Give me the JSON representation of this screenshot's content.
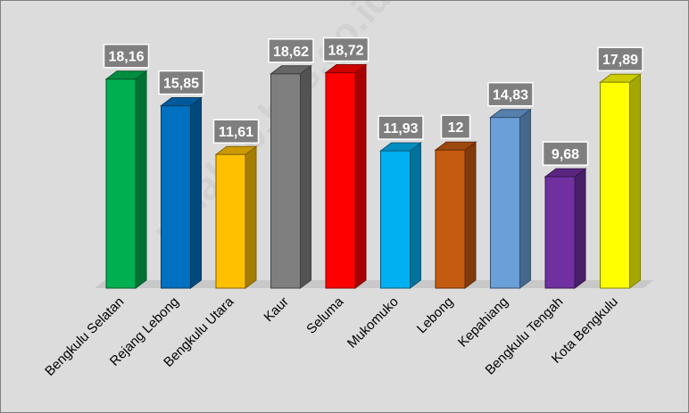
{
  "chart_data": {
    "type": "bar",
    "title": "",
    "xlabel": "",
    "ylabel": "",
    "categories": [
      "Bengkulu Selatan",
      "Rejang Lebong",
      "Bengkulu Utara",
      "Kaur",
      "Seluma",
      "Mukomuko",
      "Lebong",
      "Kepahiang",
      "Bengkulu Tengah",
      "Kota Bengkulu"
    ],
    "values": [
      18.16,
      15.85,
      11.61,
      18.62,
      18.72,
      11.93,
      12,
      14.83,
      9.68,
      17.89
    ],
    "value_labels": [
      "18,16",
      "15,85",
      "11,61",
      "18,62",
      "18,72",
      "11,93",
      "12",
      "14,83",
      "9,68",
      "17,89"
    ],
    "colors": [
      "#00b050",
      "#0070c0",
      "#ffc000",
      "#7f7f7f",
      "#ff0000",
      "#00b0f0",
      "#c55a11",
      "#6a9fd8",
      "#7030a0",
      "#ffff00"
    ],
    "ylim": [
      0,
      20
    ],
    "grid": false,
    "legend": "none"
  },
  "watermark": "umakab.bps.go.id"
}
